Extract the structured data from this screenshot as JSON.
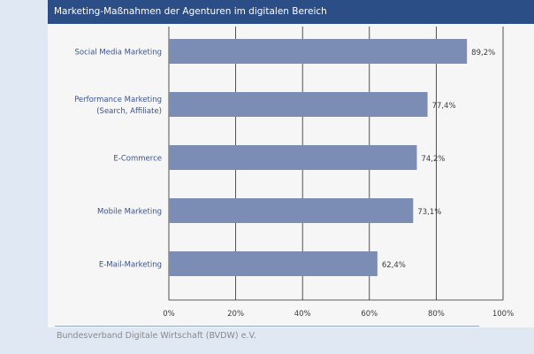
{
  "header": {
    "title": "Marketing-Maßnahmen der Agenturen im digitalen Bereich"
  },
  "colors": {
    "header_bg": "#2b4e86",
    "bar": "#7b8cb5",
    "label": "#3a5390",
    "panel": "#f6f6f6",
    "frame": "#dfe8f3"
  },
  "chart_data": {
    "type": "bar",
    "orientation": "horizontal",
    "title": "Marketing-Maßnahmen der Agenturen im digitalen Bereich",
    "categories": [
      [
        "Social Media Marketing"
      ],
      [
        "Performance Marketing",
        "(Search, Affiliate)"
      ],
      [
        "E-Commerce"
      ],
      [
        "Mobile Marketing"
      ],
      [
        "E-Mail-Marketing"
      ]
    ],
    "values": [
      89.2,
      77.4,
      74.2,
      73.1,
      62.4
    ],
    "value_labels": [
      "89,2%",
      "77,4%",
      "74,2%",
      "73,1%",
      "62,4%"
    ],
    "xlim": [
      0,
      100
    ],
    "xticks": [
      0,
      20,
      40,
      60,
      80,
      100
    ],
    "xtick_labels": [
      "0%",
      "20%",
      "40%",
      "60%",
      "80%",
      "100%"
    ],
    "grid": true,
    "xlabel": "",
    "ylabel": ""
  },
  "footer": {
    "source": "Bundesverband Digitale Wirtschaft (BVDW) e.V."
  }
}
